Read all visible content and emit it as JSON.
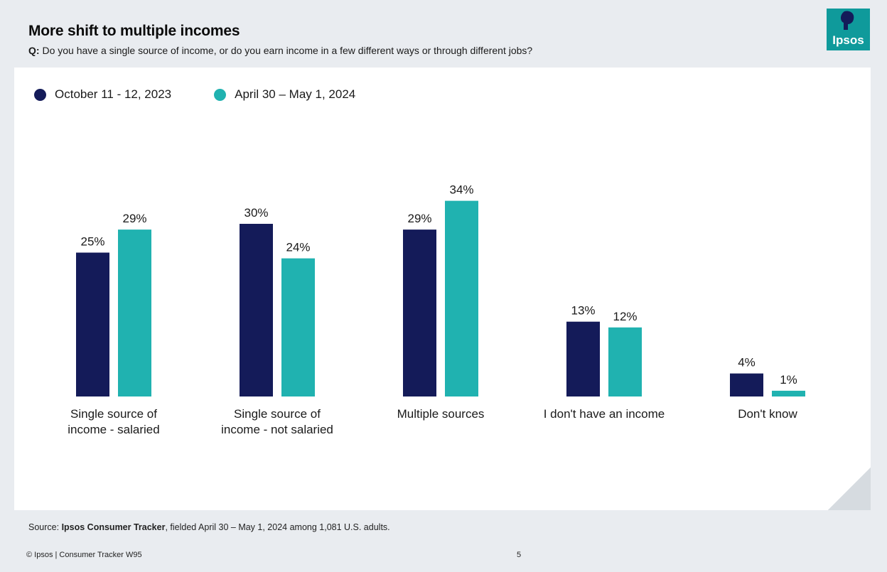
{
  "header": {
    "title": "More shift to multiple incomes",
    "question_prefix": "Q:",
    "question_text": "Do you have a single source of income, or do you earn income in a few different ways or through different jobs?"
  },
  "logo": {
    "text": "Ipsos",
    "color": "#0f9a9b",
    "icon": "ipsos-logo-icon"
  },
  "chart_data": {
    "type": "bar",
    "title": "More shift to multiple incomes",
    "xlabel": "",
    "ylabel": "",
    "ylim": [
      0,
      40
    ],
    "grid": false,
    "legend_position": "top-left",
    "categories": [
      [
        "Single source of",
        "income - salaried"
      ],
      [
        "Single source of",
        "income - not salaried"
      ],
      [
        "Multiple sources"
      ],
      [
        "I don't have an income"
      ],
      [
        "Don't know"
      ]
    ],
    "series": [
      {
        "name": "October 11 - 12, 2023",
        "color": "#141b59",
        "values": [
          25,
          30,
          29,
          13,
          4
        ],
        "labels": [
          "25%",
          "30%",
          "29%",
          "13%",
          "4%"
        ]
      },
      {
        "name": "April 30 – May 1, 2024",
        "color": "#20b2b0",
        "values": [
          29,
          24,
          34,
          12,
          1
        ],
        "labels": [
          "29%",
          "24%",
          "34%",
          "12%",
          "1%"
        ]
      }
    ]
  },
  "source": {
    "prefix": "Source: ",
    "name": "Ipsos Consumer Tracker",
    "rest": ", fielded April 30 – May 1, 2024 among 1,081 U.S. adults."
  },
  "footer": {
    "left": "© Ipsos | Consumer Tracker W95",
    "page": "5"
  }
}
